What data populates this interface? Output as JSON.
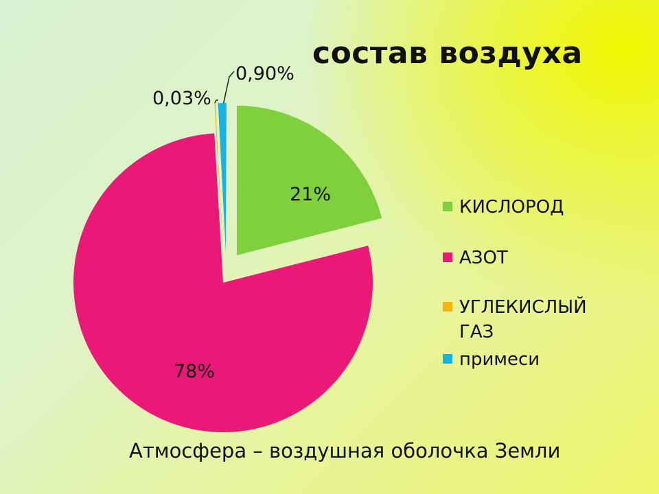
{
  "title": "состав воздуха",
  "caption": "Атмосфера – воздушная оболочка Земли",
  "chart_data": {
    "type": "pie",
    "slices": [
      {
        "label": "КИСЛОРОД",
        "value": 21,
        "display": "21%",
        "color": "#7ed03c",
        "exploded": true
      },
      {
        "label": "АЗОТ",
        "value": 78,
        "display": "78%",
        "color": "#ea1877",
        "exploded": false
      },
      {
        "label": "УГЛЕКИСЛЫЙ ГАЗ",
        "value": 0.03,
        "display": "0,03%",
        "color": "#f5b50d",
        "exploded": true
      },
      {
        "label": "примеси",
        "value": 0.9,
        "display": "0,90%",
        "color": "#19b2e3",
        "exploded": true
      }
    ],
    "legend_position": "right"
  }
}
